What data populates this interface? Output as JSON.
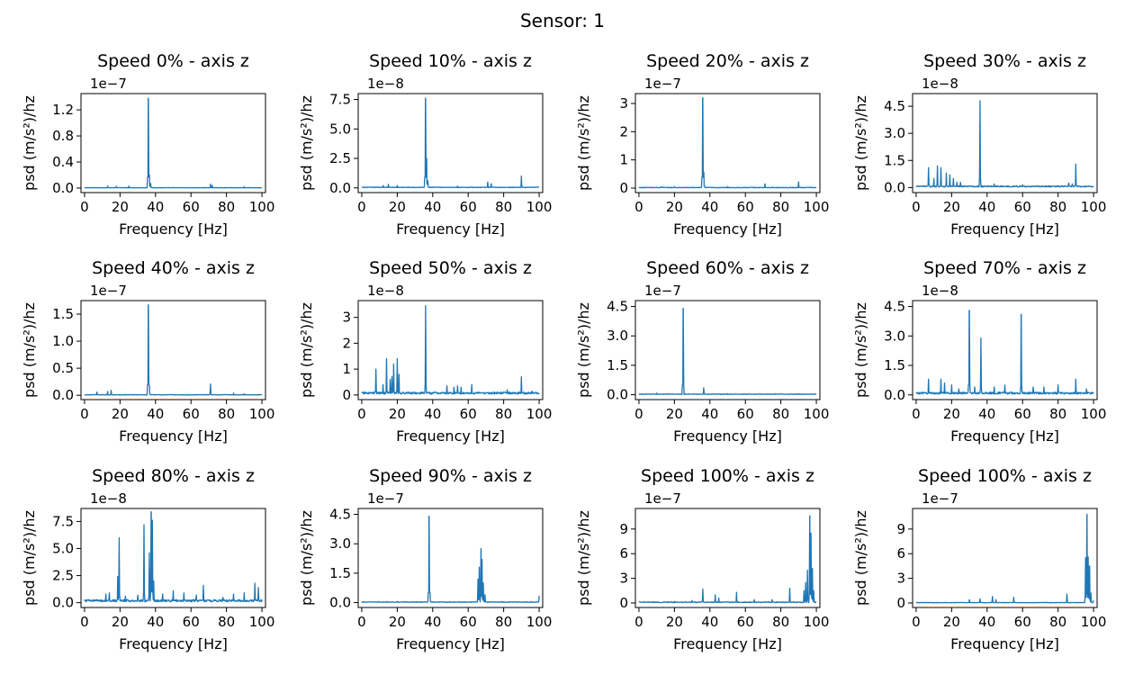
{
  "figure": {
    "suptitle": "Sensor: 1",
    "line_color": "#1f77b4"
  },
  "chart_data": [
    {
      "type": "line",
      "title": "Speed 0% - axis z",
      "xlabel": "Frequency [Hz]",
      "ylabel": "psd (m/s²)/hz",
      "multiplier": "1e−7",
      "xlim": [
        -2,
        102
      ],
      "ylim": [
        -0.07,
        1.45
      ],
      "xticks": [
        0,
        20,
        40,
        60,
        80,
        100
      ],
      "xtick_labels": [
        "0",
        "20",
        "40",
        "60",
        "80",
        "100"
      ],
      "yticks": [
        0.0,
        0.4,
        0.8,
        1.2
      ],
      "ytick_labels": [
        "0.0",
        "0.4",
        "0.8",
        "1.2"
      ],
      "baseline": 0.005,
      "peaks": [
        [
          35.9,
          1.38
        ],
        [
          36.6,
          0.2
        ],
        [
          37.2,
          0.07
        ],
        [
          13,
          0.03
        ],
        [
          18,
          0.025
        ],
        [
          25,
          0.03
        ],
        [
          71,
          0.06
        ],
        [
          72,
          0.04
        ],
        [
          90,
          0.02
        ]
      ]
    },
    {
      "type": "line",
      "title": "Speed 10% - axis z",
      "xlabel": "Frequency [Hz]",
      "ylabel": "psd (m/s²)/hz",
      "multiplier": "1e−8",
      "xlim": [
        -2,
        102
      ],
      "ylim": [
        -0.4,
        8.0
      ],
      "xticks": [
        0,
        20,
        40,
        60,
        80,
        100
      ],
      "xtick_labels": [
        "0",
        "20",
        "40",
        "60",
        "80",
        "100"
      ],
      "yticks": [
        0.0,
        2.5,
        5.0,
        7.5
      ],
      "ytick_labels": [
        "0.0",
        "2.5",
        "5.0",
        "7.5"
      ],
      "baseline": 0.05,
      "peaks": [
        [
          35.9,
          7.6
        ],
        [
          36.6,
          2.5
        ],
        [
          37.2,
          0.6
        ],
        [
          12,
          0.2
        ],
        [
          15,
          0.3
        ],
        [
          20,
          0.2
        ],
        [
          54,
          0.15
        ],
        [
          71,
          0.5
        ],
        [
          73,
          0.35
        ],
        [
          90,
          1.0
        ]
      ]
    },
    {
      "type": "line",
      "title": "Speed 20% - axis z",
      "xlabel": "Frequency [Hz]",
      "ylabel": "psd (m/s²)/hz",
      "multiplier": "1e−7",
      "xlim": [
        -2,
        102
      ],
      "ylim": [
        -0.16,
        3.35
      ],
      "xticks": [
        0,
        20,
        40,
        60,
        80,
        100
      ],
      "xtick_labels": [
        "0",
        "20",
        "40",
        "60",
        "80",
        "100"
      ],
      "yticks": [
        0,
        1,
        2,
        3
      ],
      "ytick_labels": [
        "0",
        "1",
        "2",
        "3"
      ],
      "baseline": 0.02,
      "peaks": [
        [
          35.9,
          3.2
        ],
        [
          36.6,
          0.55
        ],
        [
          13,
          0.05
        ],
        [
          20,
          0.05
        ],
        [
          50,
          0.05
        ],
        [
          71,
          0.15
        ],
        [
          90,
          0.22
        ]
      ]
    },
    {
      "type": "line",
      "title": "Speed 30% - axis z",
      "xlabel": "Frequency [Hz]",
      "ylabel": "psd (m/s²)/hz",
      "multiplier": "1e−8",
      "xlim": [
        -2,
        102
      ],
      "ylim": [
        -0.28,
        5.2
      ],
      "xticks": [
        0,
        20,
        40,
        60,
        80,
        100
      ],
      "xtick_labels": [
        "0",
        "20",
        "40",
        "60",
        "80",
        "100"
      ],
      "yticks": [
        0.0,
        1.5,
        3.0,
        4.5
      ],
      "ytick_labels": [
        "0.0",
        "1.5",
        "3.0",
        "4.5"
      ],
      "baseline": 0.07,
      "peaks": [
        [
          36.0,
          4.8
        ],
        [
          7,
          1.1
        ],
        [
          12,
          1.2
        ],
        [
          14,
          1.1
        ],
        [
          17,
          0.8
        ],
        [
          19,
          0.7
        ],
        [
          21,
          0.5
        ],
        [
          23,
          0.3
        ],
        [
          25,
          0.3
        ],
        [
          10,
          0.5
        ],
        [
          44,
          0.2
        ],
        [
          60,
          0.15
        ],
        [
          86,
          0.25
        ],
        [
          90,
          1.3
        ],
        [
          88,
          0.2
        ]
      ]
    },
    {
      "type": "line",
      "title": "Speed 40% - axis z",
      "xlabel": "Frequency [Hz]",
      "ylabel": "psd (m/s²)/hz",
      "multiplier": "1e−7",
      "xlim": [
        -2,
        102
      ],
      "ylim": [
        -0.08,
        1.75
      ],
      "xticks": [
        0,
        20,
        40,
        60,
        80,
        100
      ],
      "xtick_labels": [
        "0",
        "20",
        "40",
        "60",
        "80",
        "100"
      ],
      "yticks": [
        0.0,
        0.5,
        1.0,
        1.5
      ],
      "ytick_labels": [
        "0.0",
        "0.5",
        "1.0",
        "1.5"
      ],
      "baseline": 0.01,
      "peaks": [
        [
          35.9,
          1.67
        ],
        [
          36.6,
          0.18
        ],
        [
          7,
          0.06
        ],
        [
          13,
          0.07
        ],
        [
          15,
          0.09
        ],
        [
          71,
          0.21
        ],
        [
          84,
          0.04
        ],
        [
          90,
          0.03
        ]
      ]
    },
    {
      "type": "line",
      "title": "Speed 50% - axis z",
      "xlabel": "Frequency [Hz]",
      "ylabel": "psd (m/s²)/hz",
      "multiplier": "1e−8",
      "xlim": [
        -2,
        102
      ],
      "ylim": [
        -0.18,
        3.65
      ],
      "xticks": [
        0,
        20,
        40,
        60,
        80,
        100
      ],
      "xtick_labels": [
        "0",
        "20",
        "40",
        "60",
        "80",
        "100"
      ],
      "yticks": [
        0,
        1,
        2,
        3
      ],
      "ytick_labels": [
        "0",
        "1",
        "2",
        "3"
      ],
      "baseline": 0.08,
      "peaks": [
        [
          36.0,
          3.45
        ],
        [
          8,
          1.0
        ],
        [
          14,
          1.4
        ],
        [
          16,
          0.6
        ],
        [
          18,
          1.2
        ],
        [
          20,
          1.4
        ],
        [
          21,
          0.8
        ],
        [
          12,
          0.4
        ],
        [
          17,
          0.7
        ],
        [
          48,
          0.35
        ],
        [
          52,
          0.3
        ],
        [
          54,
          0.35
        ],
        [
          56,
          0.3
        ],
        [
          62,
          0.4
        ],
        [
          82,
          0.2
        ],
        [
          90,
          0.7
        ],
        [
          96,
          0.15
        ]
      ]
    },
    {
      "type": "line",
      "title": "Speed 60% - axis z",
      "xlabel": "Frequency [Hz]",
      "ylabel": "psd (m/s²)/hz",
      "multiplier": "1e−7",
      "xlim": [
        -2,
        102
      ],
      "ylim": [
        -0.25,
        4.8
      ],
      "xticks": [
        0,
        20,
        40,
        60,
        80,
        100
      ],
      "xtick_labels": [
        "0",
        "20",
        "40",
        "60",
        "80",
        "100"
      ],
      "yticks": [
        0.0,
        1.5,
        3.0,
        4.5
      ],
      "ytick_labels": [
        "0.0",
        "1.5",
        "3.0",
        "4.5"
      ],
      "baseline": 0.03,
      "peaks": [
        [
          24.9,
          4.4
        ],
        [
          36.5,
          0.35
        ],
        [
          10,
          0.08
        ],
        [
          50,
          0.05
        ]
      ]
    },
    {
      "type": "line",
      "title": "Speed 70% - axis z",
      "xlabel": "Frequency [Hz]",
      "ylabel": "psd (m/s²)/hz",
      "multiplier": "1e−8",
      "xlim": [
        -2,
        102
      ],
      "ylim": [
        -0.24,
        4.8
      ],
      "xticks": [
        0,
        20,
        40,
        60,
        80,
        100
      ],
      "xtick_labels": [
        "0",
        "20",
        "40",
        "60",
        "80",
        "100"
      ],
      "yticks": [
        0.0,
        1.5,
        3.0,
        4.5
      ],
      "ytick_labels": [
        "0.0",
        "1.5",
        "3.0",
        "4.5"
      ],
      "baseline": 0.1,
      "peaks": [
        [
          29.9,
          4.3
        ],
        [
          36.5,
          2.9
        ],
        [
          59.2,
          4.1
        ],
        [
          7,
          0.8
        ],
        [
          14,
          0.8
        ],
        [
          16,
          0.6
        ],
        [
          20,
          0.5
        ],
        [
          24,
          0.3
        ],
        [
          33,
          0.4
        ],
        [
          44,
          0.4
        ],
        [
          50,
          0.5
        ],
        [
          66,
          0.4
        ],
        [
          72,
          0.4
        ],
        [
          80,
          0.5
        ],
        [
          90,
          0.8
        ],
        [
          96,
          0.3
        ]
      ]
    },
    {
      "type": "line",
      "title": "Speed 80% - axis z",
      "xlabel": "Frequency [Hz]",
      "ylabel": "psd (m/s²)/hz",
      "multiplier": "1e−8",
      "xlim": [
        -2,
        102
      ],
      "ylim": [
        -0.45,
        8.7
      ],
      "xticks": [
        0,
        20,
        40,
        60,
        80,
        100
      ],
      "xtick_labels": [
        "0",
        "20",
        "40",
        "60",
        "80",
        "100"
      ],
      "yticks": [
        0.0,
        2.5,
        5.0,
        7.5
      ],
      "ytick_labels": [
        "0.0",
        "2.5",
        "5.0",
        "7.5"
      ],
      "baseline": 0.2,
      "peaks": [
        [
          19.5,
          6.0
        ],
        [
          18.7,
          2.4
        ],
        [
          33.5,
          7.2
        ],
        [
          36.5,
          4.6
        ],
        [
          37.6,
          8.4
        ],
        [
          38.2,
          7.6
        ],
        [
          39.0,
          2.0
        ],
        [
          12,
          0.8
        ],
        [
          14,
          0.9
        ],
        [
          23,
          0.6
        ],
        [
          30,
          0.7
        ],
        [
          44,
          0.8
        ],
        [
          50,
          1.1
        ],
        [
          56,
          0.9
        ],
        [
          63,
          0.7
        ],
        [
          67,
          1.6
        ],
        [
          78,
          0.5
        ],
        [
          84,
          0.8
        ],
        [
          90,
          0.9
        ],
        [
          96,
          1.8
        ],
        [
          98,
          1.4
        ]
      ]
    },
    {
      "type": "line",
      "title": "Speed 90% - axis z",
      "xlabel": "Frequency [Hz]",
      "ylabel": "psd (m/s²)/hz",
      "multiplier": "1e−7",
      "xlim": [
        -2,
        102
      ],
      "ylim": [
        -0.25,
        4.8
      ],
      "xticks": [
        0,
        20,
        40,
        60,
        80,
        100
      ],
      "xtick_labels": [
        "0",
        "20",
        "40",
        "60",
        "80",
        "100"
      ],
      "yticks": [
        0.0,
        1.5,
        3.0,
        4.5
      ],
      "ytick_labels": [
        "0.0",
        "1.5",
        "3.0",
        "4.5"
      ],
      "baseline": 0.03,
      "peaks": [
        [
          37.9,
          4.4
        ],
        [
          38.5,
          0.5
        ],
        [
          65.5,
          1.2
        ],
        [
          66.3,
          1.8
        ],
        [
          67.2,
          2.75
        ],
        [
          67.8,
          2.2
        ],
        [
          68.5,
          1.0
        ],
        [
          69.5,
          0.4
        ],
        [
          100,
          0.35
        ],
        [
          20,
          0.06
        ]
      ]
    },
    {
      "type": "line",
      "title": "Speed 100% - axis z",
      "xlabel": "Frequency [Hz]",
      "ylabel": "psd (m/s²)/hz",
      "multiplier": "1e−7",
      "xlim": [
        -2,
        102
      ],
      "ylim": [
        -0.55,
        11.5
      ],
      "xticks": [
        0,
        20,
        40,
        60,
        80,
        100
      ],
      "xtick_labels": [
        "0",
        "20",
        "40",
        "60",
        "80",
        "100"
      ],
      "yticks": [
        0,
        3,
        6,
        9
      ],
      "ytick_labels": [
        "0",
        "3",
        "6",
        "9"
      ],
      "baseline": 0.1,
      "peaks": [
        [
          36,
          1.7
        ],
        [
          43,
          1.0
        ],
        [
          45,
          0.6
        ],
        [
          55,
          1.3
        ],
        [
          65,
          0.4
        ],
        [
          75,
          0.4
        ],
        [
          85,
          1.8
        ],
        [
          93,
          1.5
        ],
        [
          94,
          2.5
        ],
        [
          95,
          4.0
        ],
        [
          96.3,
          10.6
        ],
        [
          97,
          8.5
        ],
        [
          97.8,
          4.2
        ],
        [
          98.5,
          1.5
        ],
        [
          30,
          0.3
        ],
        [
          20,
          0.2
        ]
      ]
    },
    {
      "type": "line",
      "title": "Speed 100% - axis z",
      "xlabel": "Frequency [Hz]",
      "ylabel": "psd (m/s²)/hz",
      "multiplier": "1e−7",
      "xlim": [
        -2,
        102
      ],
      "ylim": [
        -0.55,
        11.5
      ],
      "xticks": [
        0,
        20,
        40,
        60,
        80,
        100
      ],
      "xtick_labels": [
        "0",
        "20",
        "40",
        "60",
        "80",
        "100"
      ],
      "yticks": [
        0,
        3,
        6,
        9
      ],
      "ytick_labels": [
        "0",
        "3",
        "6",
        "9"
      ],
      "baseline": 0.05,
      "peaks": [
        [
          30,
          0.4
        ],
        [
          36,
          0.5
        ],
        [
          43,
          0.8
        ],
        [
          45,
          0.4
        ],
        [
          55,
          0.7
        ],
        [
          85,
          1.1
        ],
        [
          95.5,
          5.5
        ],
        [
          96.3,
          10.8
        ],
        [
          97,
          5.6
        ],
        [
          97.8,
          4.5
        ],
        [
          98.5,
          1.2
        ],
        [
          100,
          0.3
        ]
      ]
    }
  ]
}
